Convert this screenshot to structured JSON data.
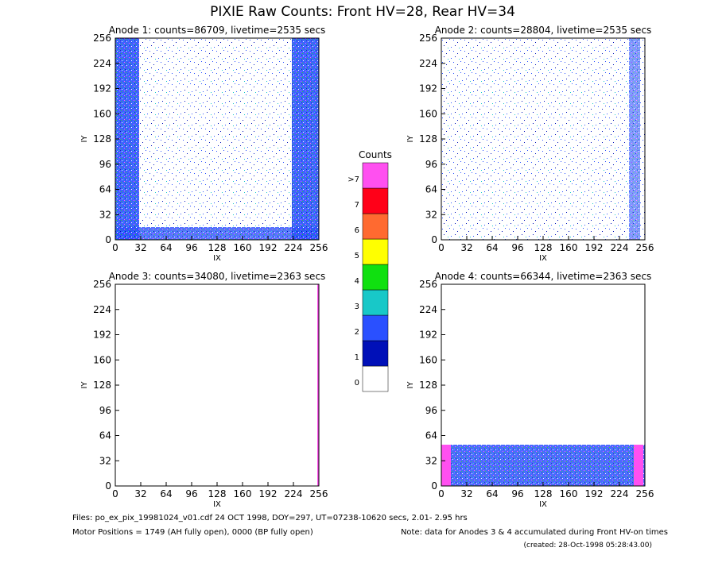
{
  "title": "PIXIE Raw Counts:  Front HV=28, Rear HV=34",
  "chart_data": [
    {
      "type": "heatmap",
      "title": "Anode 1: counts=86709, livetime=2535 secs",
      "xlabel": "IX",
      "ylabel": "IY",
      "xlim": [
        0,
        256
      ],
      "ylim": [
        0,
        256
      ],
      "xticks": [
        0,
        32,
        64,
        96,
        128,
        160,
        192,
        224,
        256
      ],
      "yticks": [
        0,
        32,
        64,
        96,
        128,
        160,
        192,
        224,
        256
      ]
    },
    {
      "type": "heatmap",
      "title": "Anode 2: counts=28804, livetime=2535 secs",
      "xlabel": "IX",
      "ylabel": "IY",
      "xlim": [
        0,
        256
      ],
      "ylim": [
        0,
        256
      ],
      "xticks": [
        0,
        32,
        64,
        96,
        128,
        160,
        192,
        224,
        256
      ],
      "yticks": [
        0,
        32,
        64,
        96,
        128,
        160,
        192,
        224,
        256
      ]
    },
    {
      "type": "heatmap",
      "title": "Anode 3: counts=34080, livetime=2363 secs",
      "xlabel": "IX",
      "ylabel": "IY",
      "xlim": [
        0,
        256
      ],
      "ylim": [
        0,
        256
      ],
      "xticks": [
        0,
        32,
        64,
        96,
        128,
        160,
        192,
        224,
        256
      ],
      "yticks": [
        0,
        32,
        64,
        96,
        128,
        160,
        192,
        224,
        256
      ]
    },
    {
      "type": "heatmap",
      "title": "Anode 4: counts=66344, livetime=2363 secs",
      "xlabel": "IX",
      "ylabel": "IY",
      "xlim": [
        0,
        256
      ],
      "ylim": [
        0,
        256
      ],
      "xticks": [
        0,
        32,
        64,
        96,
        128,
        160,
        192,
        224,
        256
      ],
      "yticks": [
        0,
        32,
        64,
        96,
        128,
        160,
        192,
        224,
        256
      ]
    }
  ],
  "colorbar": {
    "title": "Counts",
    "levels": [
      {
        "label": "0",
        "color": "#ffffff"
      },
      {
        "label": "1",
        "color": "#0010b8"
      },
      {
        "label": "2",
        "color": "#2a50ff"
      },
      {
        "label": "3",
        "color": "#18c8c8"
      },
      {
        "label": "4",
        "color": "#10e010"
      },
      {
        "label": "5",
        "color": "#ffff00"
      },
      {
        "label": "6",
        "color": "#ff6a30"
      },
      {
        "label": "7",
        "color": "#ff0018"
      },
      {
        "label": ">7",
        "color": "#ff50f0"
      }
    ]
  },
  "footer": {
    "files": "Files: po_ex_pix_19981024_v01.cdf   24 OCT 1998, DOY=297, UT=07238-10620 secs,  2.01- 2.95 hrs",
    "motor": "Motor Positions = 1749 (AH fully open), 0000 (BP fully open)",
    "note": "Note: data for Anodes 3 & 4 accumulated during Front HV-on times",
    "created": "(created: 28-Oct-1998 05:28:43.00)"
  }
}
